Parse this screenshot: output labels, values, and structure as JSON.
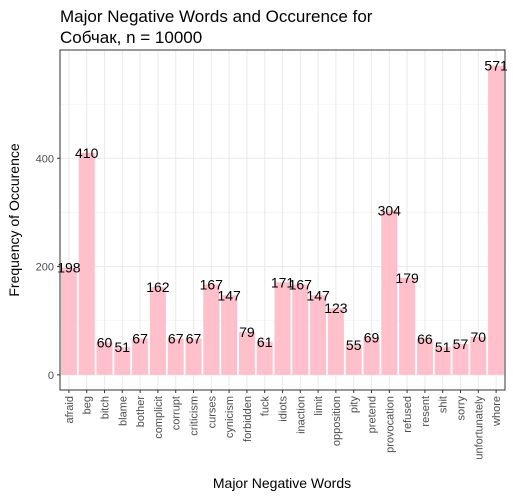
{
  "chart_data": {
    "type": "bar",
    "title": "Major Negative Words and Occurence for\nСобчак, n = 10000",
    "xlabel": "Major Negative Words",
    "ylabel": "Frequency of Occurence",
    "categories": [
      "afraid",
      "beg",
      "bitch",
      "blame",
      "bother",
      "complicit",
      "corrupt",
      "criticism",
      "curses",
      "cynicism",
      "forbidden",
      "fuck",
      "idiots",
      "inaction",
      "limit",
      "opposition",
      "pity",
      "pretend",
      "provocation",
      "refused",
      "resent",
      "shit",
      "sorry",
      "unfortunately",
      "whore"
    ],
    "values": [
      198,
      410,
      60,
      51,
      67,
      162,
      67,
      67,
      167,
      147,
      79,
      61,
      171,
      167,
      147,
      123,
      55,
      69,
      304,
      179,
      66,
      51,
      57,
      70,
      571
    ],
    "y_ticks": [
      0,
      200,
      400
    ],
    "ylim": [
      -28,
      600
    ],
    "grid": true,
    "bar_color": "#ffc0cb"
  }
}
